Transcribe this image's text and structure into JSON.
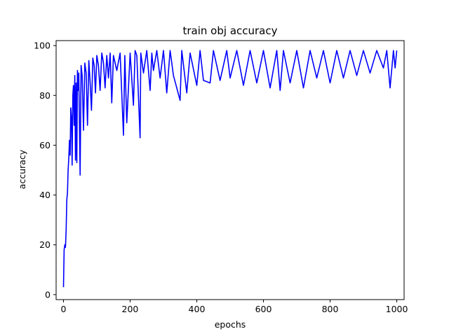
{
  "chart_data": {
    "type": "line",
    "title": "train obj accuracy",
    "xlabel": "epochs",
    "ylabel": "accuracy",
    "xlim": [
      -22,
      1022
    ],
    "ylim": [
      -2,
      102
    ],
    "xticks": [
      0,
      200,
      400,
      600,
      800,
      1000
    ],
    "yticks": [
      0,
      20,
      40,
      60,
      80,
      100
    ],
    "grid": false,
    "legend": "none",
    "series": [
      {
        "color": "#0000ff",
        "x": [
          0,
          2,
          4,
          6,
          8,
          10,
          12,
          14,
          16,
          18,
          20,
          22,
          24,
          26,
          28,
          30,
          32,
          34,
          36,
          38,
          40,
          42,
          44,
          46,
          48,
          50,
          53,
          56,
          60,
          64,
          68,
          72,
          76,
          80,
          84,
          88,
          92,
          96,
          100,
          105,
          110,
          115,
          120,
          125,
          130,
          135,
          140,
          145,
          150,
          160,
          170,
          180,
          184,
          190,
          200,
          210,
          215,
          220,
          230,
          232,
          240,
          250,
          260,
          265,
          270,
          280,
          290,
          300,
          310,
          320,
          330,
          350,
          355,
          370,
          380,
          400,
          410,
          420,
          440,
          450,
          470,
          490,
          500,
          520,
          540,
          560,
          580,
          600,
          620,
          640,
          650,
          660,
          680,
          700,
          720,
          740,
          760,
          780,
          800,
          820,
          840,
          860,
          880,
          900,
          920,
          940,
          960,
          970,
          980,
          990,
          995,
          1000
        ],
        "values": [
          3,
          18,
          20,
          19,
          26,
          38,
          41,
          50,
          55,
          62,
          56,
          75,
          71,
          52,
          80,
          84,
          68,
          88,
          54,
          85,
          53,
          90,
          82,
          89,
          67,
          48,
          92,
          88,
          66,
          93,
          89,
          68,
          94,
          85,
          74,
          95,
          92,
          81,
          96,
          92,
          82,
          97,
          93,
          83,
          96,
          87,
          97,
          77,
          96,
          90,
          97,
          64,
          96,
          69,
          97,
          76,
          98,
          96,
          63,
          97,
          89,
          98,
          82,
          97,
          90,
          98,
          87,
          98,
          81,
          98,
          88,
          78,
          98,
          81,
          97,
          84,
          98,
          86,
          85,
          98,
          86,
          98,
          87,
          98,
          84,
          98,
          85,
          98,
          83,
          98,
          82,
          98,
          85,
          98,
          83,
          98,
          87,
          98,
          85,
          98,
          87,
          98,
          88,
          98,
          89,
          98,
          91,
          98,
          83,
          98,
          91,
          98
        ]
      }
    ]
  }
}
